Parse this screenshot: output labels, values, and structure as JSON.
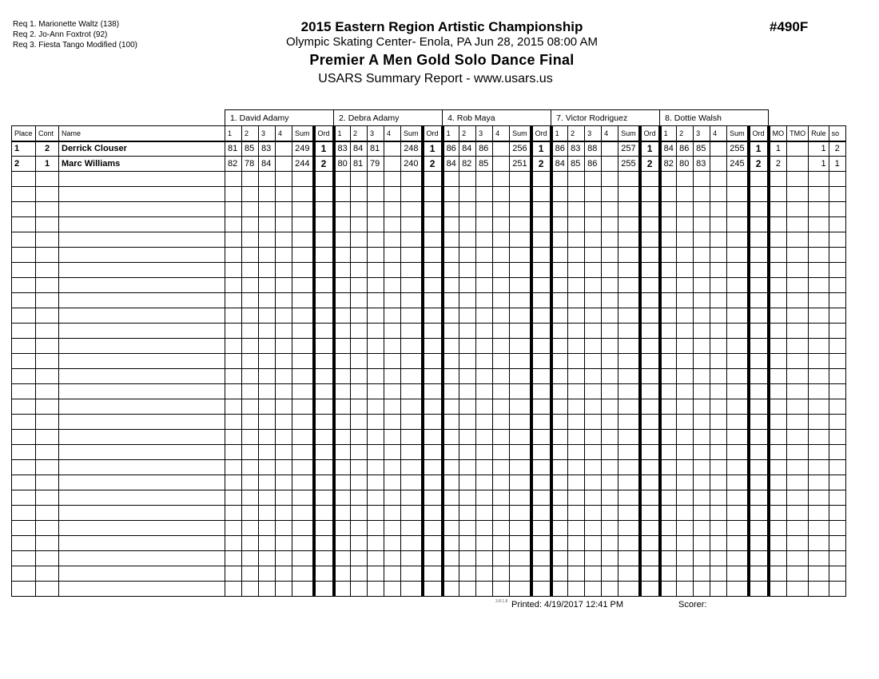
{
  "requirements": [
    "Req  1.  Marionette Waltz (138)",
    "Req  2.  Jo-Ann Foxtrot (92)",
    "Req  3.  Fiesta Tango Modified (100)"
  ],
  "header": {
    "title": "2015 Eastern Region Artistic Championship",
    "subtitle": "Olympic Skating Center- Enola, PA  Jun 28, 2015  08:00 AM",
    "event": "Premier A Men Gold Solo Dance Final",
    "report": "USARS Summary Report - www.usars.us",
    "event_code": "#490F"
  },
  "judges": [
    "1.  David Adamy",
    "2.  Debra Adamy",
    "4.  Rob Maya",
    "7.  Victor Rodriguez",
    "8.  Dottie Walsh"
  ],
  "columns": {
    "place": "Place",
    "cont": "Cont",
    "name": "Name",
    "judge_cols": [
      "1",
      "2",
      "3",
      "4",
      "Sum",
      "Ord"
    ],
    "tail": [
      "MO",
      "TMO",
      "Rule",
      "so"
    ]
  },
  "rows": [
    {
      "place": "1",
      "cont": "2",
      "name": "Derrick Clouser",
      "judges": [
        {
          "scores": [
            "81",
            "85",
            "83",
            ""
          ],
          "sum": "249",
          "ord": "1"
        },
        {
          "scores": [
            "83",
            "84",
            "81",
            ""
          ],
          "sum": "248",
          "ord": "1"
        },
        {
          "scores": [
            "86",
            "84",
            "86",
            ""
          ],
          "sum": "256",
          "ord": "1"
        },
        {
          "scores": [
            "86",
            "83",
            "88",
            ""
          ],
          "sum": "257",
          "ord": "1"
        },
        {
          "scores": [
            "84",
            "86",
            "85",
            ""
          ],
          "sum": "255",
          "ord": "1"
        }
      ],
      "mo": "1",
      "tmo": "",
      "rule": "1",
      "so": "2"
    },
    {
      "place": "2",
      "cont": "1",
      "name": "Marc Williams",
      "judges": [
        {
          "scores": [
            "82",
            "78",
            "84",
            ""
          ],
          "sum": "244",
          "ord": "2"
        },
        {
          "scores": [
            "80",
            "81",
            "79",
            ""
          ],
          "sum": "240",
          "ord": "2"
        },
        {
          "scores": [
            "84",
            "82",
            "85",
            ""
          ],
          "sum": "251",
          "ord": "2"
        },
        {
          "scores": [
            "84",
            "85",
            "86",
            ""
          ],
          "sum": "255",
          "ord": "2"
        },
        {
          "scores": [
            "82",
            "80",
            "83",
            ""
          ],
          "sum": "245",
          "ord": "2"
        }
      ],
      "mo": "2",
      "tmo": "",
      "rule": "1",
      "so": "1"
    }
  ],
  "footer": {
    "version": "3.8.1.8",
    "printed": "Printed:  4/19/2017  12:41 PM",
    "scorer": "Scorer:"
  }
}
